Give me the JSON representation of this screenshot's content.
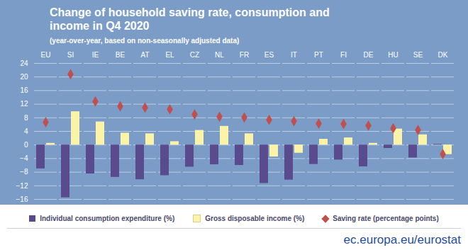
{
  "chart_data": {
    "type": "bar",
    "title": "Change of household saving rate, consumption and income in Q4 2020",
    "subtitle": "(year-over-year, based on non-seasonally adjusted data)",
    "source": "ec.europa.eu/eurostat",
    "categories": [
      "EU",
      "SI",
      "IE",
      "BE",
      "AT",
      "EL",
      "CZ",
      "NL",
      "FR",
      "ES",
      "IT",
      "PT",
      "FI",
      "DE",
      "HU",
      "SE",
      "DK"
    ],
    "series": [
      {
        "name": "Individual consumption expenditure (%)",
        "type": "bar",
        "color": "#5a4a8e",
        "values": [
          -7.0,
          -15.5,
          -8.5,
          -9.5,
          -10.2,
          -9.0,
          -6.5,
          -5.8,
          -6.0,
          -11.3,
          -10.3,
          -5.7,
          -4.4,
          -6.4,
          -1.0,
          -3.8,
          0.2
        ]
      },
      {
        "name": "Gross disposable income (%)",
        "type": "bar",
        "color": "#fbf4a8",
        "values": [
          0.5,
          9.8,
          6.8,
          3.5,
          3.3,
          1.0,
          4.3,
          5.5,
          3.3,
          -3.5,
          -2.4,
          1.7,
          2.1,
          0.5,
          4.7,
          3.0,
          -2.8
        ]
      },
      {
        "name": "Saving rate (percentage points)",
        "type": "scatter",
        "marker": "diamond",
        "color": "#c0504d",
        "values": [
          6.7,
          20.8,
          12.8,
          11.4,
          11.0,
          10.5,
          9.0,
          8.3,
          8.1,
          7.4,
          7.0,
          6.3,
          6.2,
          5.7,
          4.9,
          4.4,
          -2.7
        ]
      }
    ],
    "ylim": [
      -16,
      24
    ],
    "yticks": [
      -16,
      -12,
      -8,
      -4,
      0,
      4,
      8,
      12,
      16,
      20,
      24
    ],
    "grid": true,
    "legend": "bottom"
  }
}
